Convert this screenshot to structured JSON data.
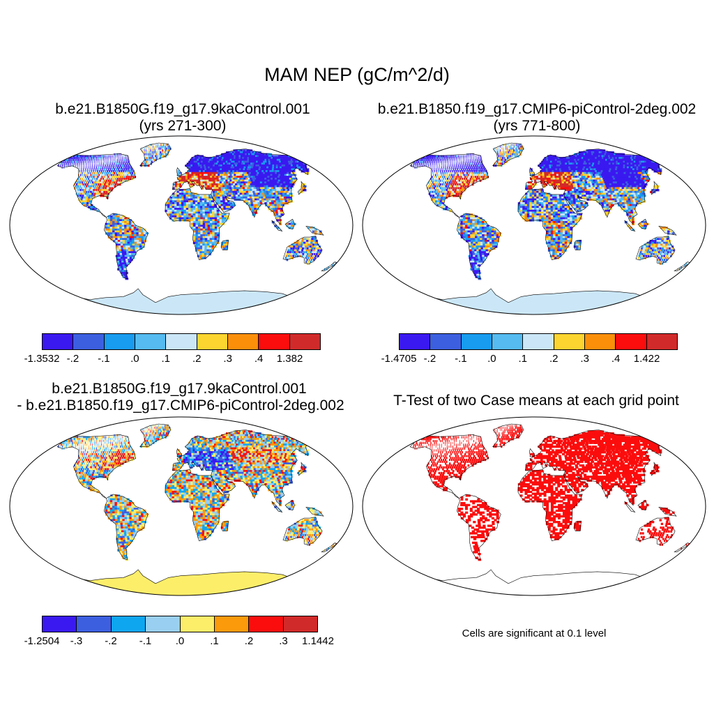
{
  "main_title": "MAM NEP (gC/m^2/d)",
  "panels": [
    {
      "id": "case1",
      "title_line1": "b.e21.B1850G.f19_g17.9kaControl.001",
      "title_line2": "(yrs 271-300)"
    },
    {
      "id": "case2",
      "title_line1": "b.e21.B1850.f19_g17.CMIP6-piControl-2deg.002",
      "title_line2": "(yrs 771-800)"
    },
    {
      "id": "diff",
      "title_line1": "b.e21.B1850G.f19_g17.9kaControl.001",
      "title_line2": "- b.e21.B1850.f19_g17.CMIP6-piControl-2deg.002"
    },
    {
      "id": "ttest",
      "title_line1": "T-Test of two Case means at each grid point",
      "title_line2": ""
    }
  ],
  "colorbars": [
    {
      "id": "cb-case1",
      "colors": [
        "#3a19f0",
        "#3c5fe0",
        "#189cf0",
        "#55bbf0",
        "#cbe7f7",
        "#fcd530",
        "#fb8f0a",
        "#fb0d0d",
        "#d12a2a"
      ],
      "labels": [
        "-1.3532",
        "-.2",
        "-.1",
        ".0",
        ".1",
        ".2",
        ".3",
        ".4",
        "1.382"
      ]
    },
    {
      "id": "cb-case2",
      "colors": [
        "#3a19f0",
        "#3c5fe0",
        "#189cf0",
        "#55bbf0",
        "#cbe7f7",
        "#fcd530",
        "#fb8f0a",
        "#fb0d0d",
        "#d12a2a"
      ],
      "labels": [
        "-1.4705",
        "-.2",
        "-.1",
        ".0",
        ".1",
        ".2",
        ".3",
        ".4",
        "1.422"
      ]
    },
    {
      "id": "cb-diff",
      "colors": [
        "#3a19f0",
        "#3c5fe0",
        "#0fa6f0",
        "#99cff0",
        "#fdee6a",
        "#fb9a0a",
        "#fb0d0d",
        "#d12a2a"
      ],
      "labels": [
        "-1.2504",
        "-.3",
        "-.2",
        "-.1",
        ".0",
        ".1",
        ".2",
        ".3",
        "1.1442"
      ]
    }
  ],
  "significance_note": "Cells are significant at 0.1 level",
  "map_colors": {
    "ocean": "#ffffff",
    "coast": "#000000",
    "antarctica_case": "#cbe7f7",
    "antarctica_diff": "#fdee6a",
    "significant": "#fb0d0d"
  }
}
